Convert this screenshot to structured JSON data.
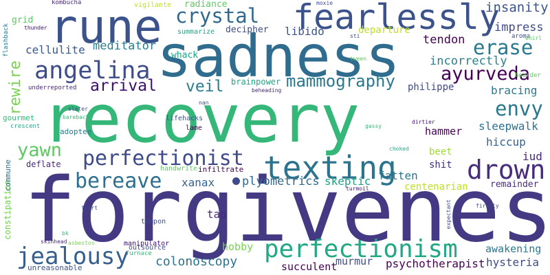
{
  "words": [
    {
      "text": "recovery",
      "color": "#35b779"
    },
    {
      "text": "forgiveness",
      "color": "#443983"
    },
    {
      "text": "sadness",
      "color": "#2f6c8e"
    },
    {
      "text": "rune",
      "color": "#3b528b"
    },
    {
      "text": "fearlessly",
      "color": "#3b528b"
    },
    {
      "text": "crystal",
      "color": "#31688e"
    },
    {
      "text": "angelina",
      "color": "#3e4c8a"
    },
    {
      "text": "texting",
      "color": "#2c738e"
    },
    {
      "text": "perfectionism",
      "color": "#22a884"
    },
    {
      "text": "perfectionist",
      "color": "#3e4a89"
    },
    {
      "text": "drown",
      "color": "#472d7b"
    },
    {
      "text": "jealousy",
      "color": "#355f8d"
    },
    {
      "text": "bereave",
      "color": "#2d708e"
    },
    {
      "text": "mammography",
      "color": "#2a788e"
    },
    {
      "text": "ayurveda",
      "color": "#440154"
    },
    {
      "text": "erase",
      "color": "#2a788e"
    },
    {
      "text": "envy",
      "color": "#2a788e"
    },
    {
      "text": "yawn",
      "color": "#5ec962"
    },
    {
      "text": "arrival",
      "color": "#3b0f70"
    },
    {
      "text": "veil",
      "color": "#287d8e"
    },
    {
      "text": "rewire",
      "color": "#7ad151"
    },
    {
      "text": "colonoscopy",
      "color": "#2c738e"
    },
    {
      "text": "plyometrics",
      "color": "#31688e"
    },
    {
      "text": "insanity",
      "color": "#3b528b"
    },
    {
      "text": "impress",
      "color": "#3e4a89"
    },
    {
      "text": "meditator",
      "color": "#287d8e"
    },
    {
      "text": "cellulite",
      "color": "#38588c"
    },
    {
      "text": "decipher",
      "color": "#3e4c8a"
    },
    {
      "text": "libido",
      "color": "#3b528b"
    },
    {
      "text": "departure",
      "color": "#bddf26"
    },
    {
      "text": "tendon",
      "color": "#440154"
    },
    {
      "text": "incorrectly",
      "color": "#26828e"
    },
    {
      "text": "bracing",
      "color": "#2a788e"
    },
    {
      "text": "philippe",
      "color": "#3e4a89"
    },
    {
      "text": "sleepwalk",
      "color": "#2d708e"
    },
    {
      "text": "hiccup",
      "color": "#33638d"
    },
    {
      "text": "iud",
      "color": "#482878"
    },
    {
      "text": "hammer",
      "color": "#440154"
    },
    {
      "text": "beet",
      "color": "#a0da39"
    },
    {
      "text": "skeptic",
      "color": "#1fa187"
    },
    {
      "text": "fatten",
      "color": "#2c738e"
    },
    {
      "text": "shit",
      "color": "#472d7b"
    },
    {
      "text": "xanax",
      "color": "#33638d"
    },
    {
      "text": "tao",
      "color": "#482878"
    },
    {
      "text": "centenarian",
      "color": "#bddf26"
    },
    {
      "text": "remainder",
      "color": "#472d7b"
    },
    {
      "text": "awakening",
      "color": "#2a788e"
    },
    {
      "text": "hysteria",
      "color": "#3e4a89"
    },
    {
      "text": "psychotherapist",
      "color": "#440154"
    },
    {
      "text": "murmur",
      "color": "#3e4c8a"
    },
    {
      "text": "succulent",
      "color": "#440154"
    },
    {
      "text": "hobby",
      "color": "#7ad151"
    },
    {
      "text": "radiance",
      "color": "#5ec962"
    },
    {
      "text": "whack",
      "color": "#1fa187"
    },
    {
      "text": "summarize",
      "color": "#1fa187"
    },
    {
      "text": "brainpower",
      "color": "#20a486"
    },
    {
      "text": "grid",
      "color": "#5ec962"
    },
    {
      "text": "gourmet",
      "color": "#35b779"
    },
    {
      "text": "deflate",
      "color": "#482878"
    },
    {
      "text": "adoptee",
      "color": "#2a788e"
    },
    {
      "text": "constipation",
      "color": "#73d056"
    },
    {
      "text": "handwrite",
      "color": "#5ec962"
    },
    {
      "text": "infiltrate",
      "color": "#440154"
    },
    {
      "text": "lifehacks",
      "color": "#3b528b"
    },
    {
      "text": "lame",
      "color": "#440154"
    },
    {
      "text": "tampon",
      "color": "#3e4a89"
    },
    {
      "text": "manipulator",
      "color": "#3b0f70"
    },
    {
      "text": "outsource",
      "color": "#3e4a89"
    },
    {
      "text": "furnace",
      "color": "#35b779"
    },
    {
      "text": "unreasonable",
      "color": "#3b528b"
    },
    {
      "text": "commune",
      "color": "#2d708e"
    },
    {
      "text": "underreported",
      "color": "#482878"
    },
    {
      "text": "crescent",
      "color": "#22a884"
    },
    {
      "text": "kombucha",
      "color": "#482878"
    },
    {
      "text": "vigilante",
      "color": "#bddf26"
    },
    {
      "text": "moxie",
      "color": "#3e4a89"
    },
    {
      "text": "aroma",
      "color": "#3e4a89"
    },
    {
      "text": "whirl",
      "color": "#5ec962"
    },
    {
      "text": "hoarder",
      "color": "#5ec962"
    },
    {
      "text": "flashback",
      "color": "#2a788e"
    },
    {
      "text": "thunder",
      "color": "#3b0f70"
    },
    {
      "text": "sti",
      "color": "#3e4a89"
    },
    {
      "text": "tween",
      "color": "#5ec962"
    },
    {
      "text": "beheading",
      "color": "#482878"
    },
    {
      "text": "nan",
      "color": "#3b528b"
    },
    {
      "text": "slater",
      "color": "#3e4a89"
    },
    {
      "text": "bareback",
      "color": "#35b779"
    },
    {
      "text": "dirtier",
      "color": "#3b0f70"
    },
    {
      "text": "gassy",
      "color": "#35b779"
    },
    {
      "text": "choked",
      "color": "#22a884"
    },
    {
      "text": "turmoil",
      "color": "#3b0f70"
    },
    {
      "text": "flirt",
      "color": "#3e4a89"
    },
    {
      "text": "firefly",
      "color": "#3e4a89"
    },
    {
      "text": "expectant",
      "color": "#3e4a89"
    },
    {
      "text": "bk",
      "color": "#35b779"
    },
    {
      "text": "skinhead",
      "color": "#482878"
    },
    {
      "text": "asbestos",
      "color": "#7ad151"
    }
  ]
}
